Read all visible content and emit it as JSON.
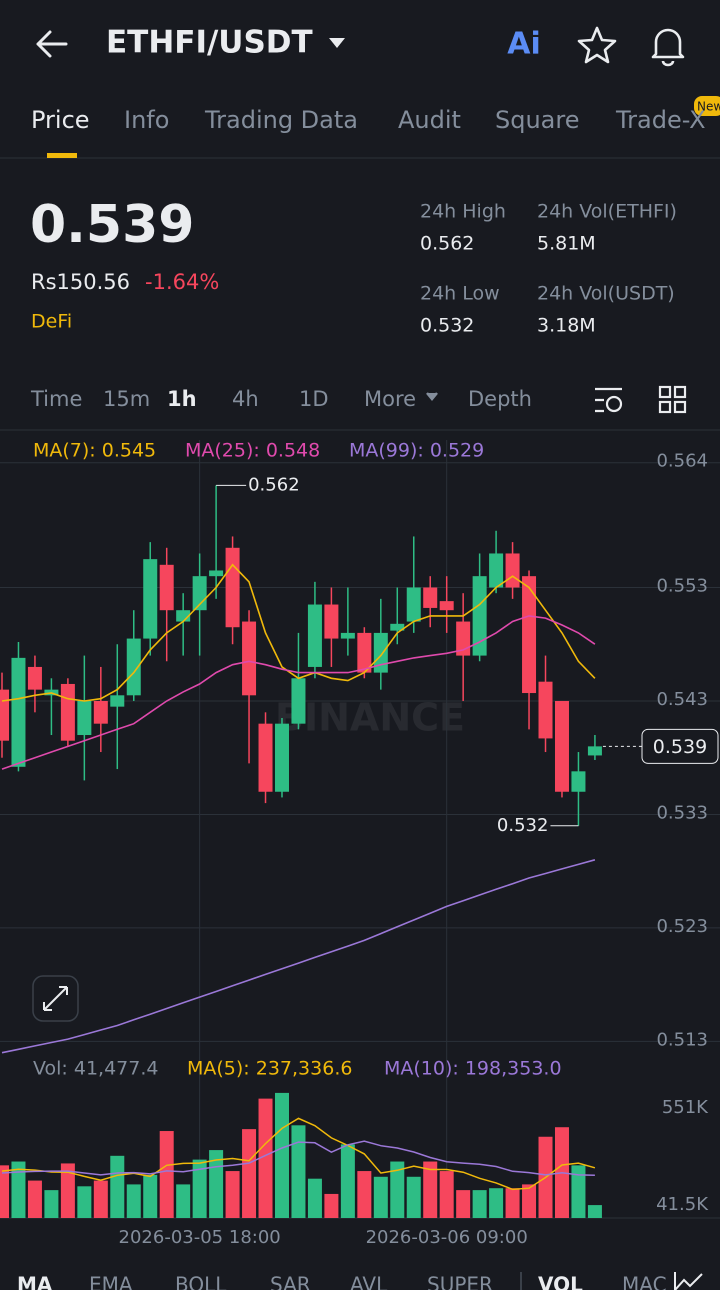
{
  "header": {
    "title": "ETHFI/USDT",
    "ai": "Ai"
  },
  "tabs": [
    "Price",
    "Info",
    "Trading Data",
    "Audit",
    "Square",
    "Trade-X"
  ],
  "new_badge": "New",
  "price": {
    "last": "0.539",
    "local": "Rs150.56",
    "change": "-1.64%",
    "tag": "DeFi",
    "stats": [
      {
        "label": "24h High",
        "value": "0.562"
      },
      {
        "label": "24h Vol(ETHFI)",
        "value": "5.81M"
      },
      {
        "label": "24h Low",
        "value": "0.532"
      },
      {
        "label": "24h Vol(USDT)",
        "value": "3.18M"
      }
    ]
  },
  "intervals": [
    "Time",
    "15m",
    "1h",
    "4h",
    "1D",
    "More",
    "Depth"
  ],
  "indicator_tabs": [
    "MA",
    "EMA",
    "BOLL",
    "SAR",
    "AVL",
    "SUPER",
    "VOL",
    "MAC"
  ],
  "chart_data": [
    {
      "type": "candlestick",
      "watermark": "BINANCE",
      "up_color": "#2ebd85",
      "down_color": "#f6465d",
      "open": [
        0.544,
        0.5372,
        0.546,
        0.5435,
        0.5445,
        0.54,
        0.543,
        0.5425,
        0.5435,
        0.5485,
        0.555,
        0.55,
        0.551,
        0.554,
        0.5565,
        0.55,
        0.541,
        0.535,
        0.541,
        0.546,
        0.5515,
        0.5485,
        0.549,
        0.5455,
        0.5492,
        0.55,
        0.553,
        0.5518,
        0.55,
        0.547,
        0.553,
        0.556,
        0.554,
        0.5447,
        0.543,
        0.535,
        0.5382
      ],
      "high": [
        0.5455,
        0.5482,
        0.547,
        0.545,
        0.545,
        0.547,
        0.546,
        0.548,
        0.551,
        0.557,
        0.5565,
        0.5525,
        0.556,
        0.562,
        0.5575,
        0.551,
        0.542,
        0.5415,
        0.549,
        0.5535,
        0.553,
        0.553,
        0.5495,
        0.552,
        0.553,
        0.5575,
        0.554,
        0.554,
        0.5525,
        0.556,
        0.558,
        0.557,
        0.5545,
        0.547,
        0.543,
        0.5385,
        0.54
      ],
      "low": [
        0.538,
        0.5368,
        0.542,
        0.54,
        0.539,
        0.536,
        0.5385,
        0.537,
        0.543,
        0.547,
        0.5465,
        0.547,
        0.547,
        0.552,
        0.548,
        0.5375,
        0.534,
        0.5345,
        0.5405,
        0.545,
        0.546,
        0.547,
        0.545,
        0.544,
        0.548,
        0.549,
        0.5495,
        0.549,
        0.543,
        0.5465,
        0.5525,
        0.552,
        0.5405,
        0.5385,
        0.5345,
        0.532,
        0.5378
      ],
      "close": [
        0.5395,
        0.5468,
        0.544,
        0.544,
        0.5395,
        0.543,
        0.541,
        0.5435,
        0.5485,
        0.5555,
        0.551,
        0.551,
        0.554,
        0.5545,
        0.5495,
        0.5435,
        0.535,
        0.541,
        0.545,
        0.5515,
        0.5485,
        0.549,
        0.5455,
        0.549,
        0.5498,
        0.553,
        0.5512,
        0.551,
        0.547,
        0.554,
        0.556,
        0.553,
        0.5437,
        0.5397,
        0.535,
        0.5368,
        0.539
      ],
      "series": [
        {
          "name": "MA(7): 0.545",
          "color": "#f0b90b",
          "values": [
            0.543,
            0.5432,
            0.5435,
            0.5437,
            0.5432,
            0.543,
            0.5432,
            0.544,
            0.5455,
            0.5475,
            0.549,
            0.55,
            0.5515,
            0.553,
            0.555,
            0.5535,
            0.549,
            0.546,
            0.545,
            0.5455,
            0.545,
            0.5448,
            0.5455,
            0.547,
            0.549,
            0.55,
            0.5505,
            0.5505,
            0.5505,
            0.5515,
            0.553,
            0.554,
            0.553,
            0.551,
            0.549,
            0.5465,
            0.545
          ]
        },
        {
          "name": "MA(25): 0.548",
          "color": "#e04aad",
          "values": [
            0.537,
            0.5375,
            0.538,
            0.5385,
            0.539,
            0.5395,
            0.54,
            0.5405,
            0.541,
            0.542,
            0.543,
            0.5438,
            0.5445,
            0.5455,
            0.5462,
            0.5465,
            0.5462,
            0.5458,
            0.5455,
            0.5455,
            0.5455,
            0.5455,
            0.5458,
            0.5462,
            0.5465,
            0.5468,
            0.547,
            0.5472,
            0.5475,
            0.5482,
            0.549,
            0.55,
            0.5505,
            0.5503,
            0.5497,
            0.549,
            0.548
          ]
        },
        {
          "name": "MA(99): 0.529",
          "color": "#9b78d8",
          "values": [
            0.512,
            0.5123,
            0.5126,
            0.5129,
            0.5132,
            0.5136,
            0.514,
            0.5144,
            0.5149,
            0.5154,
            0.5159,
            0.5164,
            0.5169,
            0.5174,
            0.5179,
            0.5184,
            0.5189,
            0.5194,
            0.5199,
            0.5204,
            0.5209,
            0.5214,
            0.5219,
            0.5225,
            0.5231,
            0.5237,
            0.5243,
            0.5249,
            0.5254,
            0.5259,
            0.5264,
            0.5269,
            0.5274,
            0.5278,
            0.5282,
            0.5286,
            0.529
          ]
        }
      ],
      "high_label": "0.562",
      "low_label": "0.532",
      "last_label": "0.539",
      "ylim": [
        0.5118,
        0.566
      ],
      "yticks": [
        0.564,
        0.553,
        0.543,
        0.533,
        0.523,
        0.513
      ]
    },
    {
      "type": "bar",
      "categories": [
        null,
        null,
        null,
        null,
        null,
        null,
        null,
        null,
        null,
        null,
        null,
        null,
        "2026-03-05 18:00",
        null,
        null,
        null,
        null,
        null,
        null,
        null,
        null,
        null,
        null,
        null,
        null,
        null,
        null,
        "2026-03-06 09:00",
        null,
        null,
        null,
        null,
        null,
        null,
        null,
        null,
        null
      ],
      "series": [
        {
          "name": "Vol: 41,477.4",
          "values": [
            250000,
            270000,
            170000,
            120000,
            260000,
            140000,
            170000,
            300000,
            150000,
            200000,
            430000,
            150000,
            280000,
            330000,
            220000,
            440000,
            600000,
            630000,
            460000,
            180000,
            100000,
            360000,
            220000,
            190000,
            270000,
            190000,
            270000,
            220000,
            120000,
            120000,
            130000,
            130000,
            150000,
            400000,
            450000,
            250000,
            41477.4
          ]
        },
        {
          "name": "MA(5): 237,336.6",
          "color": "#f0b90b",
          "values": [
            220000,
            230000,
            225000,
            215000,
            214000,
            192000,
            172000,
            198000,
            208000,
            192000,
            250000,
            260000,
            262000,
            278000,
            286000,
            274000,
            364000,
            444000,
            496000,
            458000,
            394000,
            354000,
            310000,
            210000,
            224000,
            246000,
            228000,
            228000,
            214000,
            182000,
            158000,
            124000,
            130000,
            186000,
            252000,
            262000,
            237336.6
          ]
        },
        {
          "name": "MA(10): 198,353.0",
          "color": "#9b78d8",
          "values": [
            210000,
            215000,
            218000,
            220000,
            220000,
            210000,
            200000,
            210000,
            212000,
            205000,
            221000,
            216000,
            230000,
            243000,
            250000,
            262000,
            302000,
            341000,
            372000,
            368000,
            319000,
            358000,
            377000,
            353000,
            341000,
            320000,
            291000,
            269000,
            262000,
            256000,
            244000,
            219000,
            212000,
            200000,
            211000,
            200000,
            198353.0
          ]
        }
      ],
      "ylim": [
        0,
        619000
      ],
      "yticks": [
        {
          "value": 551000,
          "label": "551K"
        },
        {
          "value": 41500,
          "label": "41.5K"
        }
      ]
    }
  ]
}
